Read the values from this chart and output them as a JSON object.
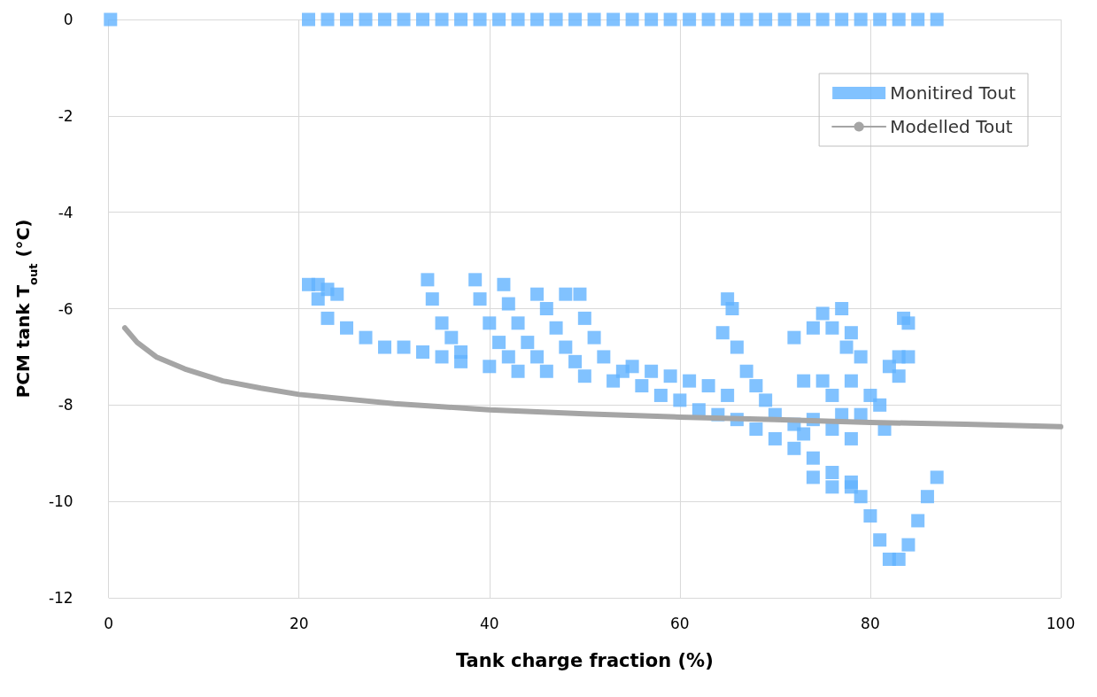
{
  "chart_data": {
    "type": "scatter",
    "xlabel": "Tank charge fraction (%)",
    "ylabel": "PCM tank T$_{out}$ (°C)",
    "xlim": [
      0,
      100
    ],
    "xticks": [
      0,
      20,
      40,
      60,
      80,
      100
    ],
    "ylim": [
      -12,
      0
    ],
    "yticks": [
      -12,
      -10,
      -8,
      -6,
      -4,
      -2,
      0
    ],
    "grid": true,
    "legend": "top right",
    "series": [
      {
        "name": "Monitired Tout",
        "marker": "square",
        "color": "#61b3ff",
        "x": [
          0.2,
          21,
          23,
          25,
          27,
          29,
          31,
          33,
          35,
          37,
          39,
          41,
          43,
          45,
          47,
          49,
          51,
          53,
          55,
          57,
          59,
          61,
          63,
          65,
          67,
          69,
          71,
          73,
          75,
          77,
          79,
          81,
          83,
          85,
          87,
          21,
          22,
          23,
          25,
          27,
          29,
          31,
          33,
          35,
          37,
          40,
          43,
          46,
          50,
          53,
          56,
          58,
          60,
          62,
          64,
          66,
          68,
          70,
          72,
          74,
          76,
          78,
          79,
          80,
          81,
          82,
          83,
          84,
          85,
          86,
          87,
          22,
          23,
          24,
          33.5,
          34,
          35,
          36,
          37,
          38.5,
          39,
          40,
          41,
          42,
          41.5,
          42,
          43,
          44,
          45,
          45,
          46,
          47,
          48,
          49,
          48,
          49.5,
          50,
          51,
          52,
          54,
          55,
          57,
          59,
          61,
          63,
          65,
          64.5,
          65,
          65.5,
          66,
          67,
          68,
          69,
          70,
          72,
          73,
          73,
          72,
          74,
          75,
          76,
          77,
          77.5,
          78,
          78,
          79,
          79,
          78,
          76,
          74,
          75,
          76,
          77,
          74,
          76,
          78,
          80,
          81,
          81.5,
          82,
          83,
          83.5,
          84,
          84,
          83
        ],
        "values": [
          0,
          0,
          0,
          0,
          0,
          0,
          0,
          0,
          0,
          0,
          0,
          0,
          0,
          0,
          0,
          0,
          0,
          0,
          0,
          0,
          0,
          0,
          0,
          0,
          0,
          0,
          0,
          0,
          0,
          0,
          0,
          0,
          0,
          0,
          0,
          -5.5,
          -5.8,
          -6.2,
          -6.4,
          -6.6,
          -6.8,
          -6.8,
          -6.9,
          -7.0,
          -7.1,
          -7.2,
          -7.3,
          -7.3,
          -7.4,
          -7.5,
          -7.6,
          -7.8,
          -7.9,
          -8.1,
          -8.2,
          -8.3,
          -8.5,
          -8.7,
          -8.9,
          -9.1,
          -9.4,
          -9.6,
          -9.9,
          -10.3,
          -10.8,
          -11.2,
          -11.2,
          -10.9,
          -10.4,
          -9.9,
          -9.5,
          -5.5,
          -5.6,
          -5.7,
          -5.4,
          -5.8,
          -6.3,
          -6.6,
          -6.9,
          -5.4,
          -5.8,
          -6.3,
          -6.7,
          -7.0,
          -5.5,
          -5.9,
          -6.3,
          -6.7,
          -7.0,
          -5.7,
          -6.0,
          -6.4,
          -6.8,
          -7.1,
          -5.7,
          -5.7,
          -6.2,
          -6.6,
          -7.0,
          -7.3,
          -7.2,
          -7.3,
          -7.4,
          -7.5,
          -7.6,
          -7.8,
          -6.5,
          -5.8,
          -6.0,
          -6.8,
          -7.3,
          -7.6,
          -7.9,
          -8.2,
          -8.4,
          -7.5,
          -8.6,
          -6.6,
          -6.4,
          -6.1,
          -6.4,
          -6.0,
          -6.8,
          -7.5,
          -6.5,
          -7.0,
          -8.2,
          -8.7,
          -8.5,
          -8.3,
          -7.5,
          -7.8,
          -8.2,
          -9.5,
          -9.7,
          -9.7,
          -7.8,
          -8.0,
          -8.5,
          -7.2,
          -7.0,
          -6.2,
          -6.3,
          -7.0,
          -7.4
        ]
      },
      {
        "name": "Modelled Tout",
        "type": "line",
        "marker": "none",
        "color": "#a5a5a5",
        "x": [
          1.7,
          3,
          5,
          8,
          12,
          16,
          20,
          30,
          40,
          50,
          60,
          70,
          80,
          90,
          100
        ],
        "values": [
          -6.4,
          -6.7,
          -7.0,
          -7.25,
          -7.5,
          -7.65,
          -7.78,
          -7.97,
          -8.1,
          -8.18,
          -8.25,
          -8.3,
          -8.36,
          -8.4,
          -8.45
        ]
      }
    ]
  }
}
